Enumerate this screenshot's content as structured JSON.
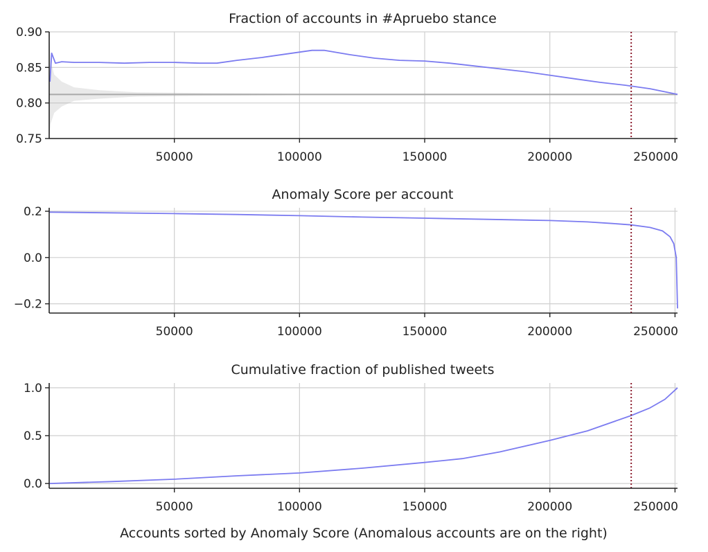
{
  "xlabel": "Accounts sorted by Anomaly Score (Anomalous accounts are on the right)",
  "chart_data": [
    {
      "type": "line",
      "title": "Fraction of accounts in #Apruebo stance",
      "xlim": [
        0,
        251000
      ],
      "ylim": [
        0.75,
        0.9
      ],
      "yticks": [
        0.75,
        0.8,
        0.85,
        0.9
      ],
      "ytick_labels": [
        "0.75",
        "0.80",
        "0.85",
        "0.90"
      ],
      "xticks": [
        50000,
        100000,
        150000,
        200000,
        250000
      ],
      "xtick_labels": [
        "50000",
        "100000",
        "150000",
        "200000",
        "250000"
      ],
      "grid": true,
      "threshold_x": 232500,
      "series": [
        {
          "x": [
            300,
            1000,
            2500,
            5000,
            10000,
            20000,
            30000,
            40000,
            50000,
            60000,
            67000,
            75000,
            85000,
            95000,
            105000,
            110000,
            120000,
            130000,
            140000,
            150000,
            160000,
            170000,
            180000,
            190000,
            200000,
            210000,
            220000,
            230000,
            240000,
            251000
          ],
          "y": [
            0.83,
            0.87,
            0.856,
            0.858,
            0.857,
            0.857,
            0.856,
            0.857,
            0.857,
            0.856,
            0.856,
            0.86,
            0.864,
            0.869,
            0.874,
            0.874,
            0.868,
            0.863,
            0.86,
            0.859,
            0.856,
            0.852,
            0.848,
            0.844,
            0.839,
            0.834,
            0.829,
            0.825,
            0.82,
            0.812
          ]
        }
      ],
      "baseline_band": {
        "level": 0.812,
        "color": "#a9a9a9",
        "x": [
          0,
          500,
          2000,
          5000,
          10000,
          20000,
          35000,
          60000,
          100000,
          251000
        ],
        "upper": [
          0.9,
          0.86,
          0.84,
          0.83,
          0.822,
          0.818,
          0.815,
          0.814,
          0.813,
          0.813
        ],
        "lower": [
          0.75,
          0.77,
          0.786,
          0.795,
          0.803,
          0.806,
          0.809,
          0.81,
          0.811,
          0.811
        ]
      }
    },
    {
      "type": "line",
      "title": "Anomaly Score per account",
      "xlim": [
        0,
        251000
      ],
      "ylim": [
        -0.24,
        0.215
      ],
      "yticks": [
        -0.2,
        0.0,
        0.2
      ],
      "ytick_labels": [
        "−0.2",
        "0.0",
        "0.2"
      ],
      "xticks": [
        50000,
        100000,
        150000,
        200000,
        250000
      ],
      "xtick_labels": [
        "50000",
        "100000",
        "150000",
        "200000",
        "250000"
      ],
      "grid": true,
      "threshold_x": 232500,
      "series": [
        {
          "x": [
            0,
            25000,
            50000,
            75000,
            100000,
            125000,
            150000,
            175000,
            200000,
            215000,
            225000,
            232500,
            240000,
            245000,
            248000,
            249500,
            250500,
            251000
          ],
          "y": [
            0.196,
            0.193,
            0.19,
            0.186,
            0.181,
            0.175,
            0.17,
            0.165,
            0.16,
            0.154,
            0.147,
            0.141,
            0.13,
            0.115,
            0.09,
            0.06,
            0.0,
            -0.22
          ]
        }
      ]
    },
    {
      "type": "line",
      "title": "Cumulative fraction of published tweets",
      "xlim": [
        0,
        251000
      ],
      "ylim": [
        -0.05,
        1.05
      ],
      "yticks": [
        0.0,
        0.5,
        1.0
      ],
      "ytick_labels": [
        "0.0",
        "0.5",
        "1.0"
      ],
      "xticks": [
        50000,
        100000,
        150000,
        200000,
        250000
      ],
      "xtick_labels": [
        "50000",
        "100000",
        "150000",
        "200000",
        "250000"
      ],
      "grid": true,
      "threshold_x": 232500,
      "series": [
        {
          "x": [
            0,
            25000,
            50000,
            75000,
            100000,
            125000,
            150000,
            165000,
            180000,
            200000,
            215000,
            232500,
            240000,
            246000,
            251000
          ],
          "y": [
            0.0,
            0.02,
            0.045,
            0.08,
            0.11,
            0.16,
            0.22,
            0.26,
            0.33,
            0.45,
            0.55,
            0.71,
            0.79,
            0.88,
            1.0
          ]
        }
      ]
    }
  ],
  "colors": {
    "line": "#7b7bf0",
    "threshold": "#8b1a2b",
    "grid": "#cfcfcf",
    "axis": "#222222",
    "baseline": "#a9a9a9"
  }
}
